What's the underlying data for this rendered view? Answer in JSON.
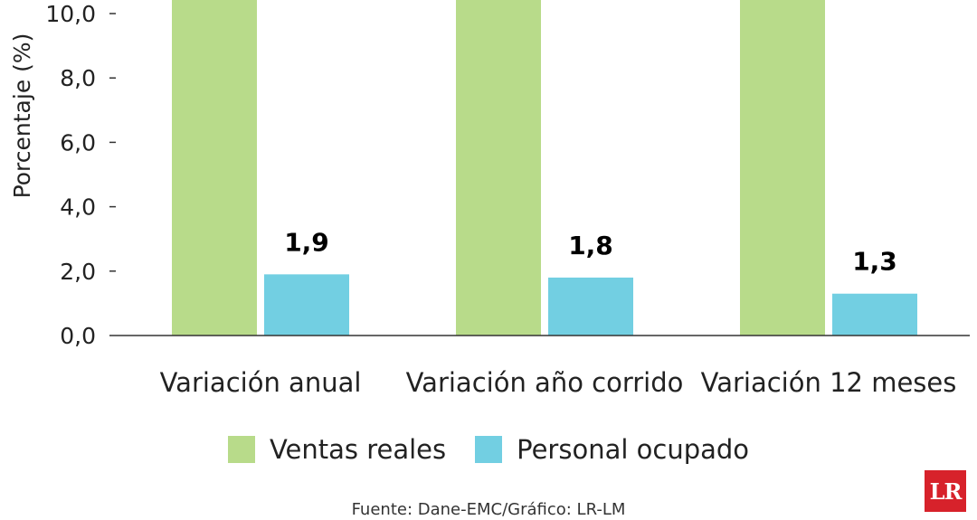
{
  "chart_data": {
    "type": "bar",
    "ylabel": "Porcentaje (%)",
    "ylim": [
      0,
      10
    ],
    "yticks": [
      "0,0",
      "2,0",
      "4,0",
      "6,0",
      "8,0",
      "10,0"
    ],
    "categories": [
      "Variación anual",
      "Variación año corrido",
      "Variación 12 meses"
    ],
    "series": [
      {
        "name": "Ventas reales",
        "color": "#b8db8a",
        "values": [
          12.0,
          12.0,
          12.0
        ],
        "labels": [
          "",
          "",
          ""
        ]
      },
      {
        "name": "Personal ocupado",
        "color": "#72cfe2",
        "values": [
          1.9,
          1.8,
          1.3
        ],
        "labels": [
          "1,9",
          "1,8",
          "1,3"
        ]
      }
    ],
    "legend_position": "bottom",
    "grid": false
  },
  "source": "Fuente: Dane-EMC/Gráfico: LR-LM",
  "logo_text": "LR"
}
